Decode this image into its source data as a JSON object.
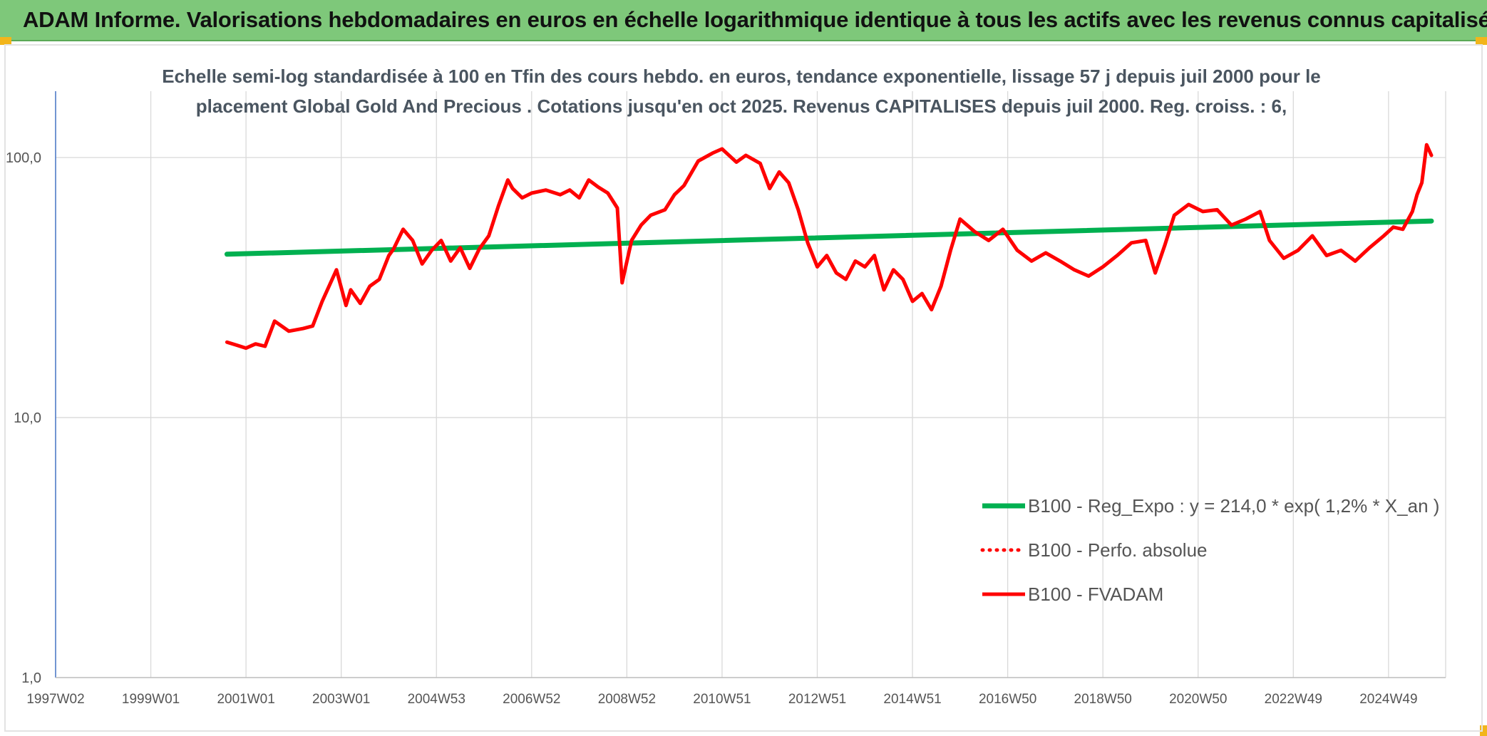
{
  "banner": {
    "title": "ADAM Informe. Valorisations hebdomadaires en euros en échelle logarithmique identique à tous les actifs avec les revenus connus capitalisés"
  },
  "colors": {
    "banner_bg": "#7ec87a",
    "corner_accent": "#f2b51b",
    "trend_line": "#00b050",
    "price_line": "#ff0000",
    "grid": "#d9d9d9",
    "axis": "#4472c4"
  },
  "chart_data": {
    "type": "line",
    "title_lines": [
      "Echelle semi-log standardisée à 100 en Tfin des cours hebdo. en euros, tendance exponentielle, lissage 57 j depuis juil 2000 pour le",
      "placement Global Gold And Precious . Cotations jusqu'en oct 2025. Revenus CAPITALISES depuis juil 2000. Reg. croiss. : 6,"
    ],
    "y_scale": "log",
    "ylim": [
      1,
      180
    ],
    "y_ticks": [
      "1,0",
      "10,0",
      "100,0"
    ],
    "y_tick_values": [
      1,
      10,
      100
    ],
    "xlim": [
      1997.0,
      2026.2
    ],
    "x_ticks": [
      "1997W02",
      "1999W01",
      "2001W01",
      "2003W01",
      "2004W53",
      "2006W52",
      "2008W52",
      "2010W51",
      "2012W51",
      "2014W51",
      "2016W50",
      "2018W50",
      "2020W50",
      "2022W49",
      "2024W49"
    ],
    "x_tick_values": [
      1997.0,
      1999.0,
      2001.0,
      2003.0,
      2005.0,
      2007.0,
      2009.0,
      2011.0,
      2013.0,
      2015.0,
      2017.0,
      2019.0,
      2021.0,
      2023.0,
      2025.0
    ],
    "grid": "vertical and horizontal",
    "legend_placement": "bottom-right",
    "series": [
      {
        "name": "B100 - Reg_Expo : y = 214,0 * exp( 1,2% *  X_an )",
        "style": "solid-thick",
        "color": "#00b050",
        "x": [
          2000.6,
          2025.9
        ],
        "y": [
          42.5,
          57.0
        ]
      },
      {
        "name": "B100 - Perfo. absolue",
        "style": "dotted",
        "color": "#ff0000",
        "x": [],
        "y": []
      },
      {
        "name": "B100 - FVADAM",
        "style": "solid",
        "color": "#ff0000",
        "x": [
          2000.6,
          2000.8,
          2001.0,
          2001.2,
          2001.4,
          2001.6,
          2001.9,
          2002.2,
          2002.4,
          2002.6,
          2002.9,
          2003.1,
          2003.2,
          2003.4,
          2003.6,
          2003.8,
          2004.0,
          2004.1,
          2004.3,
          2004.5,
          2004.7,
          2004.9,
          2005.1,
          2005.3,
          2005.5,
          2005.7,
          2005.9,
          2006.1,
          2006.3,
          2006.5,
          2006.6,
          2006.8,
          2007.0,
          2007.3,
          2007.6,
          2007.8,
          2008.0,
          2008.2,
          2008.4,
          2008.6,
          2008.8,
          2008.9,
          2009.1,
          2009.3,
          2009.5,
          2009.8,
          2010.0,
          2010.2,
          2010.5,
          2010.8,
          2011.0,
          2011.3,
          2011.5,
          2011.8,
          2012.0,
          2012.2,
          2012.4,
          2012.6,
          2012.8,
          2013.0,
          2013.2,
          2013.4,
          2013.6,
          2013.8,
          2014.0,
          2014.2,
          2014.4,
          2014.6,
          2014.8,
          2015.0,
          2015.2,
          2015.4,
          2015.6,
          2015.8,
          2016.0,
          2016.3,
          2016.6,
          2016.9,
          2017.2,
          2017.5,
          2017.8,
          2018.1,
          2018.4,
          2018.7,
          2019.0,
          2019.3,
          2019.6,
          2019.9,
          2020.1,
          2020.3,
          2020.5,
          2020.8,
          2021.1,
          2021.4,
          2021.7,
          2022.0,
          2022.3,
          2022.5,
          2022.8,
          2023.1,
          2023.4,
          2023.7,
          2024.0,
          2024.3,
          2024.6,
          2024.9,
          2025.1,
          2025.3,
          2025.5,
          2025.6,
          2025.7,
          2025.8,
          2025.9
        ],
        "y": [
          19.5,
          19.0,
          18.5,
          19.2,
          18.8,
          23.5,
          21.5,
          22.0,
          22.5,
          28.0,
          37.0,
          27.0,
          31.0,
          27.5,
          32.0,
          34.0,
          42.0,
          44.5,
          53.0,
          48.0,
          39.0,
          44.0,
          48.0,
          40.0,
          45.0,
          37.5,
          44.5,
          50.0,
          65.0,
          82.0,
          76.0,
          70.0,
          73.0,
          75.0,
          72.0,
          75.0,
          70.0,
          82.0,
          77.0,
          73.0,
          64.0,
          33.0,
          48.0,
          55.0,
          60.0,
          63.0,
          72.0,
          78.0,
          97.0,
          104.0,
          108.0,
          96.0,
          102.0,
          95.0,
          76.0,
          88.0,
          80.0,
          63.0,
          47.0,
          38.0,
          42.0,
          36.0,
          34.0,
          40.0,
          38.0,
          42.0,
          31.0,
          37.0,
          34.0,
          28.0,
          30.0,
          26.0,
          32.0,
          44.0,
          58.0,
          52.0,
          48.0,
          53.0,
          44.0,
          40.0,
          43.0,
          40.0,
          37.0,
          35.0,
          38.0,
          42.0,
          47.0,
          48.0,
          36.0,
          46.0,
          60.0,
          66.0,
          62.0,
          63.0,
          55.0,
          58.0,
          62.0,
          48.0,
          41.0,
          44.0,
          50.0,
          42.0,
          44.0,
          40.0,
          45.0,
          50.0,
          54.0,
          53.0,
          62.0,
          72.0,
          80.0,
          112.0,
          102.0
        ]
      }
    ]
  }
}
